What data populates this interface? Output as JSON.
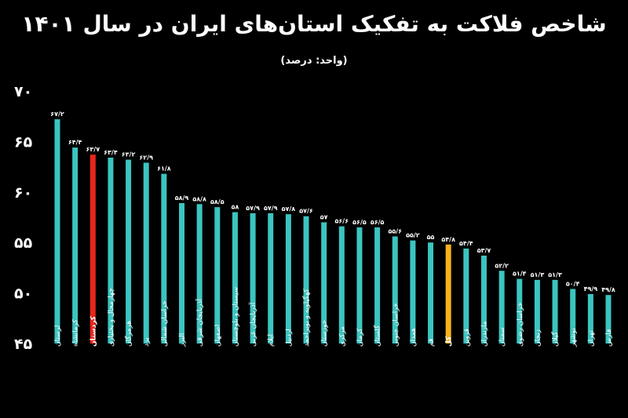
{
  "header": {
    "title": "شاخص فلاکت به تفکیک استان‌های ایران در سال ۱۴۰۱",
    "subtitle": "(واحد: درصد)"
  },
  "colors": {
    "background": "#000000",
    "bar": "#3cc4c0",
    "highlight_kurdistan": "#e8261c",
    "highlight_total": "#f5b21c",
    "label_red": "#e8261c",
    "label_yellow": "#f5b21c"
  },
  "chart_data": {
    "type": "bar",
    "title": "شاخص فلاکت به تفکیک استان‌های ایران در سال ۱۴۰۱",
    "subtitle": "(واحد: درصد)",
    "ylim": [
      45,
      70
    ],
    "yticks": [
      45,
      50,
      55,
      60,
      65,
      70
    ],
    "ytick_labels": [
      "۴۵",
      "۵۰",
      "۵۵",
      "۶۰",
      "۶۵",
      "۷۰"
    ],
    "grid": false,
    "categories": [
      "لرستان",
      "کرمانشاه",
      "کردستان",
      "چهارمحال و بختیاری",
      "هرمزگان",
      "یزد",
      "خراسان شمالی",
      "البرز",
      "آذربایجان شرقی",
      "اصفهان",
      "سیستان و بلوچستان",
      "آذربایجان غربی",
      "ایلام",
      "اردبیل",
      "کهگیلویه و بویراحمد",
      "خوزستان",
      "مرکزی",
      "کرمان",
      "گلستان",
      "خراسان جنوبی",
      "همدان",
      "قم",
      "کل",
      "قزوین",
      "مازندران",
      "سمنان",
      "خراسان رضوی",
      "زنجان",
      "گیلان",
      "بوشهر",
      "تهران",
      "فارس"
    ],
    "values": [
      67.2,
      64.4,
      63.7,
      63.4,
      63.2,
      62.9,
      61.8,
      58.9,
      58.8,
      58.5,
      58,
      57.9,
      57.9,
      57.8,
      57.6,
      57,
      56.6,
      56.5,
      56.5,
      55.6,
      55.2,
      55,
      54.8,
      54.4,
      53.7,
      52.2,
      51.4,
      51.3,
      51.3,
      50.4,
      49.9,
      49.8
    ],
    "value_labels": [
      "۶۷/۲",
      "۶۴/۴",
      "۶۳/۷",
      "۶۳/۴",
      "۶۳/۲",
      "۶۲/۹",
      "۶۱/۸",
      "۵۸/۹",
      "۵۸/۸",
      "۵۸/۵",
      "۵۸",
      "۵۷/۹",
      "۵۷/۹",
      "۵۷/۸",
      "۵۷/۶",
      "۵۷",
      "۵۶/۶",
      "۵۶/۵",
      "۵۶/۵",
      "۵۵/۶",
      "۵۵/۲",
      "۵۵",
      "۵۴/۸",
      "۵۴/۴",
      "۵۳/۷",
      "۵۲/۲",
      "۵۱/۴",
      "۵۱/۳",
      "۵۱/۳",
      "۵۰/۴",
      "۴۹/۹",
      "۴۹/۸"
    ],
    "highlights": {
      "کردستان": "red",
      "کل": "yellow"
    }
  }
}
